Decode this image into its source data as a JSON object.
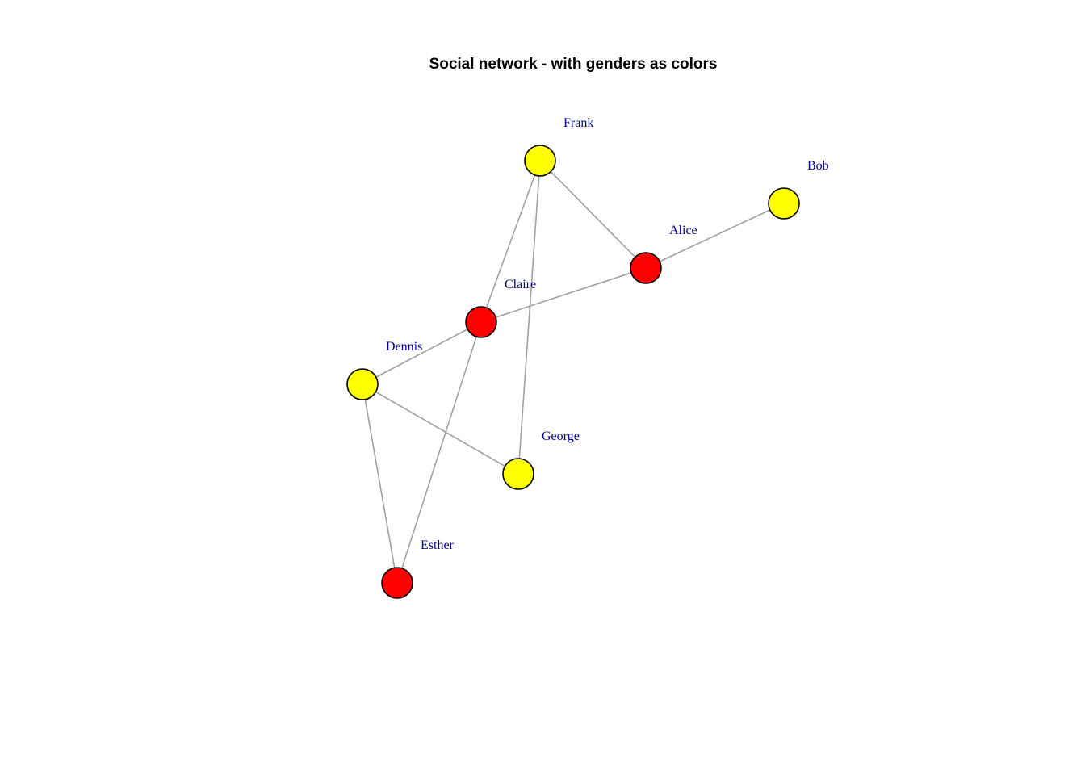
{
  "title": "Social network - with genders as colors",
  "colors": {
    "female": "#ff0000",
    "male": "#ffff00",
    "edge": "#a0a0a0",
    "label": "#00008b",
    "node_border": "#000000"
  },
  "nodes": [
    {
      "id": "Alice",
      "label": "Alice",
      "color": "#ff0000"
    },
    {
      "id": "Bob",
      "label": "Bob",
      "color": "#ffff00"
    },
    {
      "id": "Claire",
      "label": "Claire",
      "color": "#ff0000"
    },
    {
      "id": "Dennis",
      "label": "Dennis",
      "color": "#ffff00"
    },
    {
      "id": "Esther",
      "label": "Esther",
      "color": "#ff0000"
    },
    {
      "id": "Frank",
      "label": "Frank",
      "color": "#ffff00"
    },
    {
      "id": "George",
      "label": "George",
      "color": "#ffff00"
    }
  ],
  "edges": [
    [
      "Alice",
      "Bob"
    ],
    [
      "Alice",
      "Claire"
    ],
    [
      "Alice",
      "Frank"
    ],
    [
      "Claire",
      "Dennis"
    ],
    [
      "Claire",
      "Esther"
    ],
    [
      "Claire",
      "Frank"
    ],
    [
      "Dennis",
      "Esther"
    ],
    [
      "Dennis",
      "George"
    ],
    [
      "Frank",
      "George"
    ]
  ]
}
